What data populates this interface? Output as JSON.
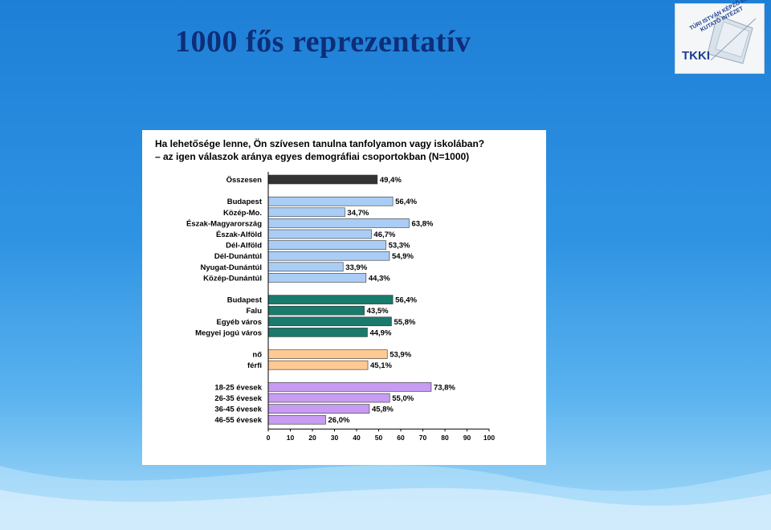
{
  "slide": {
    "title": "1000 fős reprezentatív",
    "logo_text": "TKKI",
    "logo_arc_text": "TÚRI ISTVÁN KÉPZŐ ÉS KUTATÓ INTÉZET"
  },
  "chart_data": {
    "type": "bar",
    "orientation": "horizontal",
    "title_line1": "Ha lehetősége lenne, Ön szívesen tanulna tanfolyamon vagy iskolában?",
    "title_line2": "– az igen válaszok aránya egyes demográfiai csoportokban (N=1000)",
    "xlim": [
      0,
      100
    ],
    "x_ticks": [
      "0",
      "10",
      "20",
      "30",
      "40",
      "50",
      "60",
      "70",
      "80",
      "90",
      "100"
    ],
    "grid": false,
    "colors": {
      "total": "#333333",
      "region": "#aacdf5",
      "settlement": "#1a7a6c",
      "gender": "#ffc994",
      "age": "#c79cf2"
    },
    "groups": [
      {
        "color_key": "total",
        "items": [
          {
            "label": "Összesen",
            "value": 49.4,
            "value_label": "49,4%"
          }
        ]
      },
      {
        "color_key": "region",
        "items": [
          {
            "label": "Budapest",
            "value": 56.4,
            "value_label": "56,4%"
          },
          {
            "label": "Közép-Mo.",
            "value": 34.7,
            "value_label": "34,7%"
          },
          {
            "label": "Észak-Magyarország",
            "value": 63.8,
            "value_label": "63,8%"
          },
          {
            "label": "Észak-Alföld",
            "value": 46.7,
            "value_label": "46,7%"
          },
          {
            "label": "Dél-Alföld",
            "value": 53.3,
            "value_label": "53,3%"
          },
          {
            "label": "Dél-Dunántúl",
            "value": 54.9,
            "value_label": "54,9%"
          },
          {
            "label": "Nyugat-Dunántúl",
            "value": 33.9,
            "value_label": "33,9%"
          },
          {
            "label": "Közép-Dunántúl",
            "value": 44.3,
            "value_label": "44,3%"
          }
        ]
      },
      {
        "color_key": "settlement",
        "items": [
          {
            "label": "Budapest",
            "value": 56.4,
            "value_label": "56,4%"
          },
          {
            "label": "Falu",
            "value": 43.5,
            "value_label": "43,5%"
          },
          {
            "label": "Egyéb város",
            "value": 55.8,
            "value_label": "55,8%"
          },
          {
            "label": "Megyei jogú város",
            "value": 44.9,
            "value_label": "44,9%"
          }
        ]
      },
      {
        "color_key": "gender",
        "items": [
          {
            "label": "nő",
            "value": 53.9,
            "value_label": "53,9%"
          },
          {
            "label": "férfi",
            "value": 45.1,
            "value_label": "45,1%"
          }
        ]
      },
      {
        "color_key": "age",
        "items": [
          {
            "label": "18-25 évesek",
            "value": 73.8,
            "value_label": "73,8%"
          },
          {
            "label": "26-35 évesek",
            "value": 55.0,
            "value_label": "55,0%"
          },
          {
            "label": "36-45 évesek",
            "value": 45.8,
            "value_label": "45,8%"
          },
          {
            "label": "46-55 évesek",
            "value": 26.0,
            "value_label": "26,0%"
          }
        ]
      }
    ]
  }
}
